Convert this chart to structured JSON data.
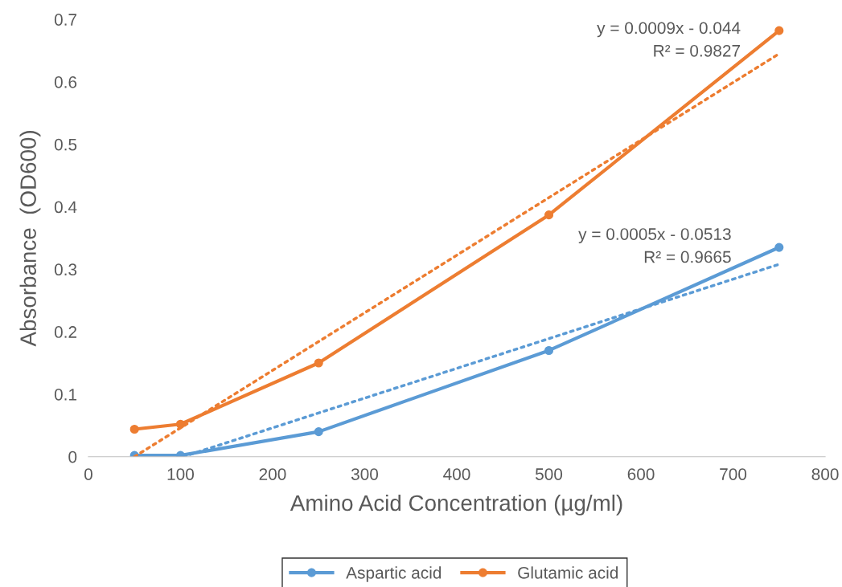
{
  "chart_data": {
    "type": "line",
    "xlabel": "Amino Acid Concentration (µg/ml)",
    "ylabel": "Absorbance  (OD600)",
    "xlim": [
      0,
      800
    ],
    "xticks": [
      0,
      100,
      200,
      300,
      400,
      500,
      600,
      700,
      800
    ],
    "ylim": [
      0,
      0.7
    ],
    "yticks": [
      0,
      0.1,
      0.2,
      0.3,
      0.4,
      0.5,
      0.6,
      0.7
    ],
    "grid": false,
    "legend": "bottom",
    "marker": "circle",
    "line_style": "solid",
    "series": [
      {
        "name": "Aspartic acid",
        "color": "#5b9bd5",
        "x": [
          50,
          100,
          250,
          500,
          750
        ],
        "values": [
          0.002,
          0.002,
          0.04,
          0.17,
          0.335
        ]
      },
      {
        "name": "Glutamic acid",
        "color": "#ed7d31",
        "x": [
          50,
          100,
          250,
          500,
          750
        ],
        "values": [
          0.044,
          0.052,
          0.15,
          0.387,
          0.682
        ]
      },
      {
        "color": "#5b9bd5",
        "x": [
          103,
          750
        ],
        "values": [
          0.0,
          0.308
        ],
        "marker": "none",
        "line_style": "dotted"
      },
      {
        "color": "#ed7d31",
        "x": [
          50,
          750
        ],
        "values": [
          0.0,
          0.645
        ],
        "marker": "none",
        "line_style": "dotted"
      }
    ],
    "annotations": [
      {
        "text": "y = 0.0009x - 0.044\nR² = 0.9827",
        "x": 735,
        "y": 0.655
      },
      {
        "text": "y = 0.0005x - 0.0513\nR² = 0.9665",
        "x": 725,
        "y": 0.325
      }
    ]
  }
}
